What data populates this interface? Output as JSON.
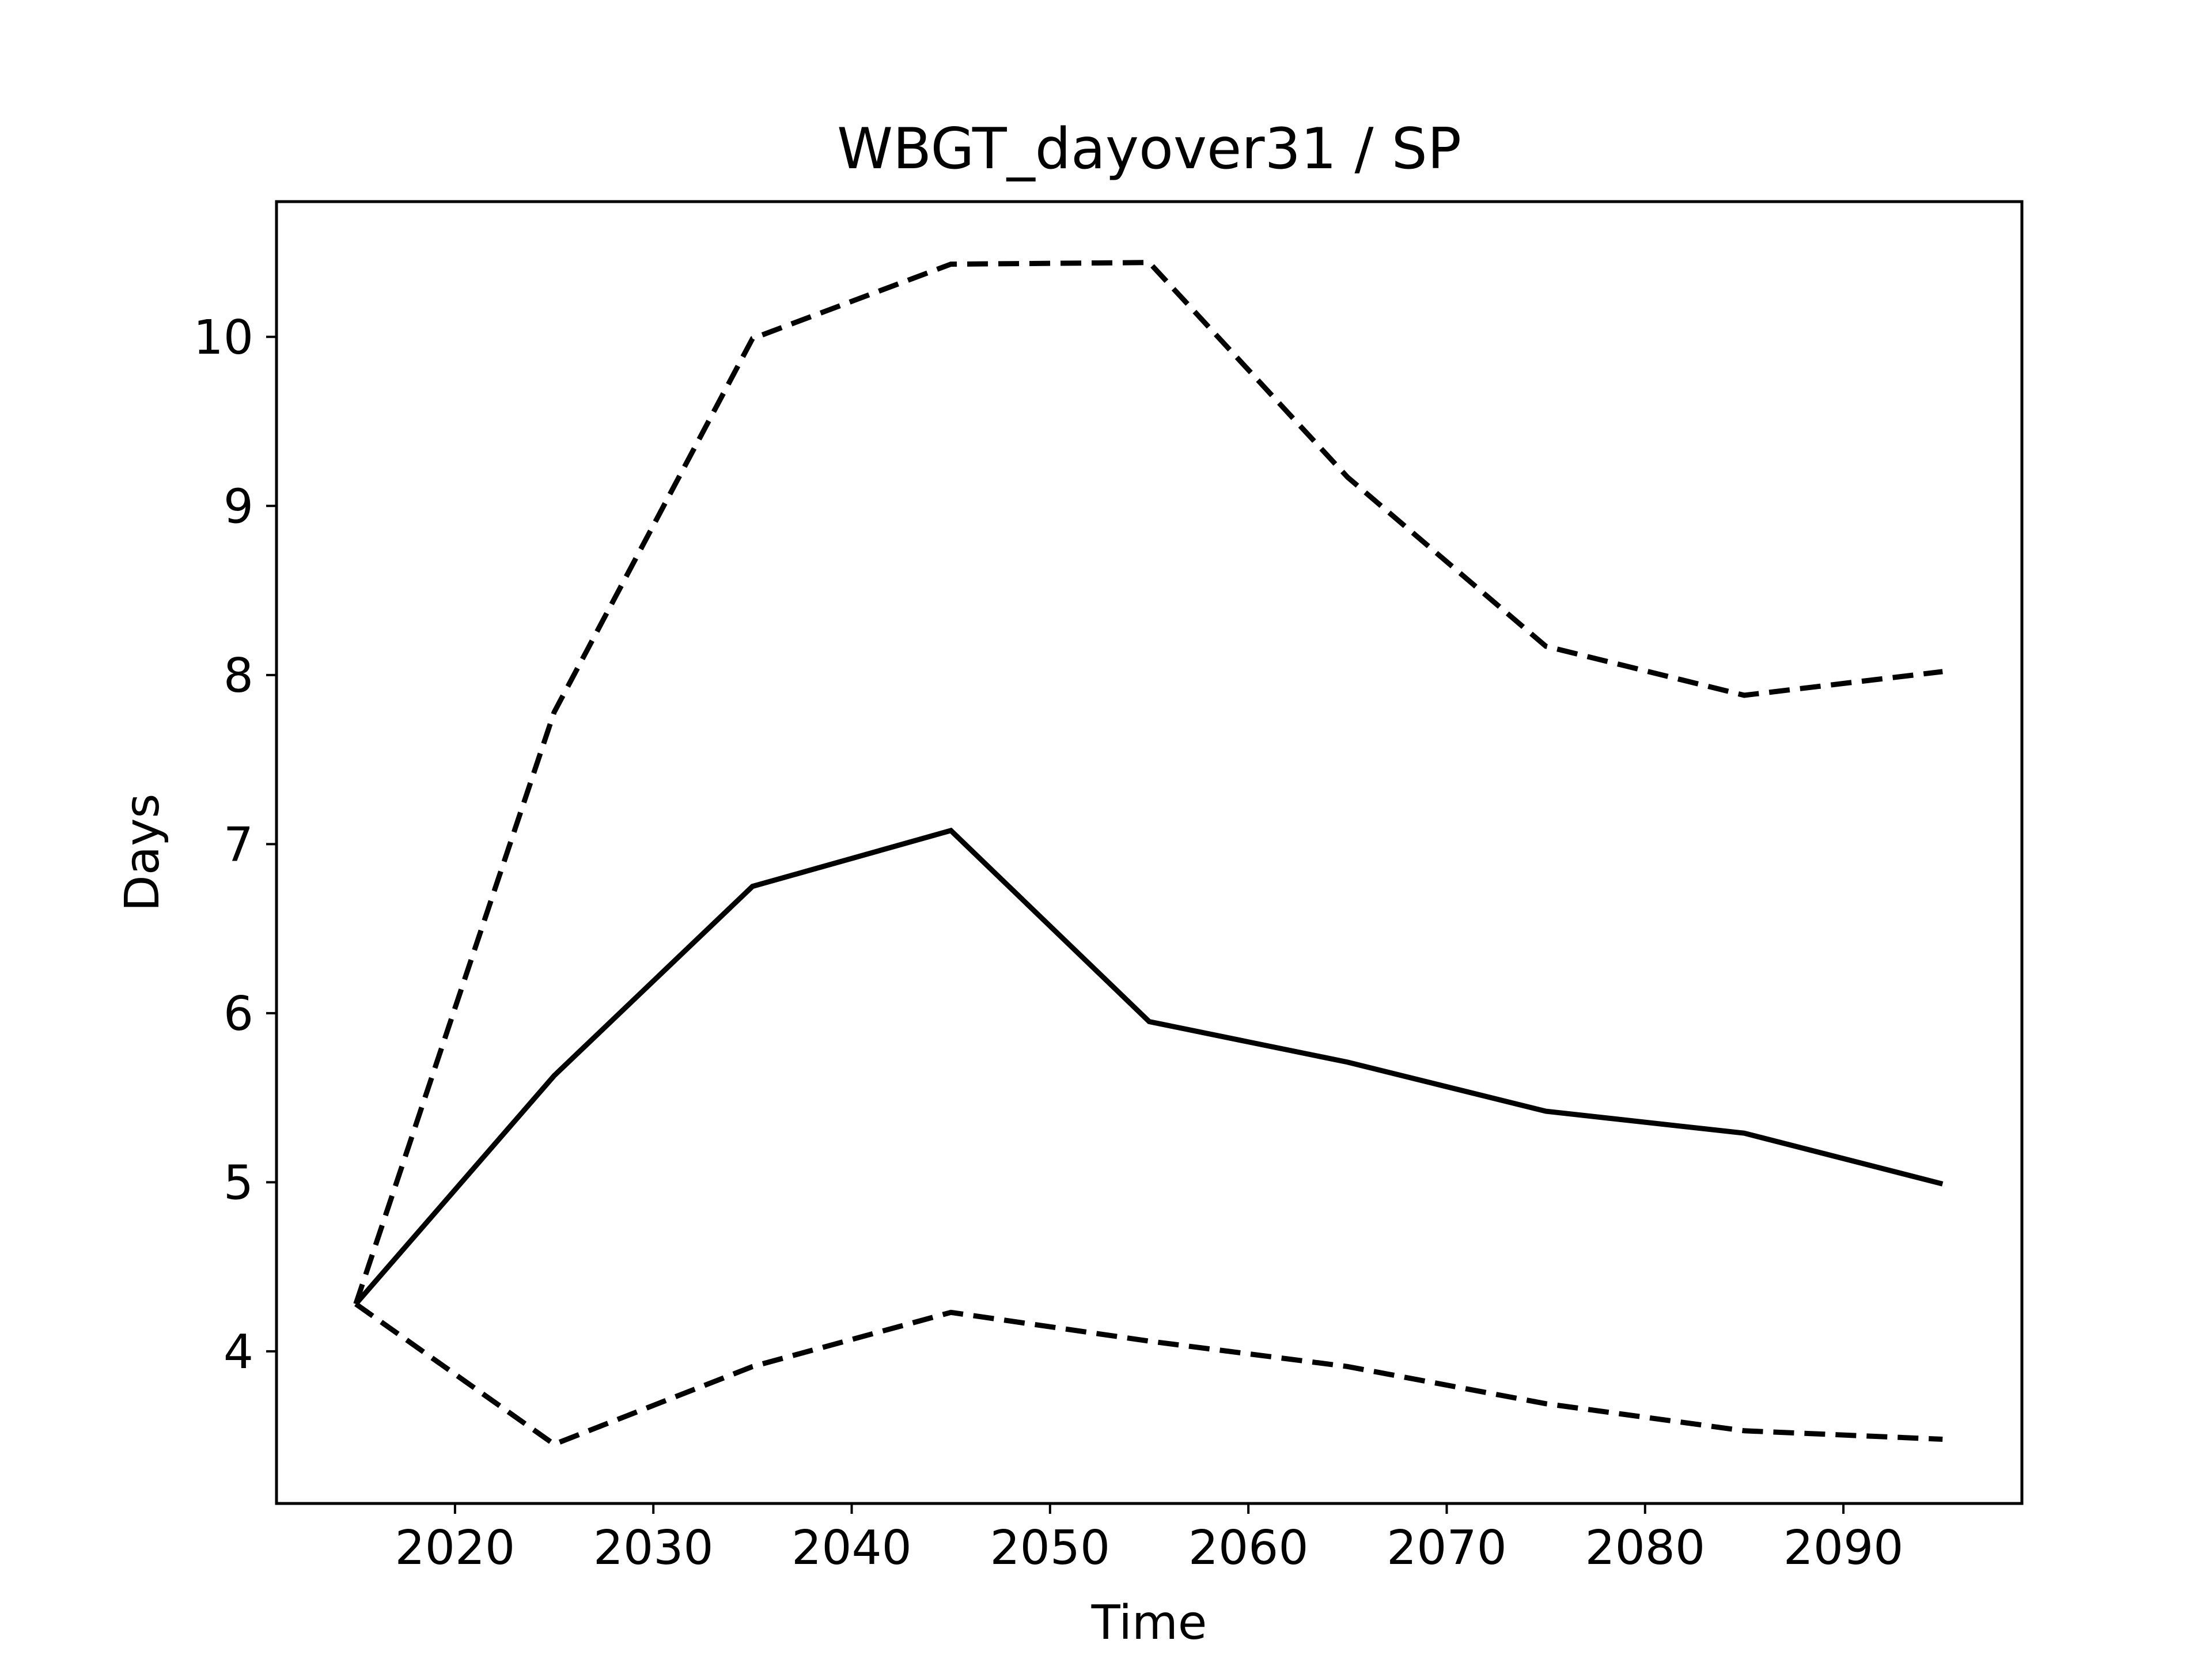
{
  "chart_data": {
    "type": "line",
    "title": "WBGT_dayover31 / SP",
    "xlabel": "Time",
    "ylabel": "Days",
    "x": [
      2015,
      2025,
      2035,
      2045,
      2055,
      2065,
      2075,
      2085,
      2095
    ],
    "xlim": [
      2011,
      2099
    ],
    "ylim": [
      3.1,
      10.8
    ],
    "xticks": [
      2020,
      2030,
      2040,
      2050,
      2060,
      2070,
      2080,
      2090
    ],
    "yticks": [
      4,
      5,
      6,
      7,
      8,
      9,
      10
    ],
    "grid": false,
    "legend": "none",
    "series": [
      {
        "style": "solid",
        "color": "#000000",
        "values": [
          4.28,
          5.63,
          6.75,
          7.08,
          5.95,
          5.71,
          5.42,
          5.29,
          4.99
        ]
      },
      {
        "style": "dashed",
        "color": "#000000",
        "values": [
          4.28,
          7.78,
          9.99,
          10.43,
          10.44,
          9.17,
          8.17,
          7.88,
          8.02
        ]
      },
      {
        "style": "dashed",
        "color": "#000000",
        "values": [
          4.28,
          3.45,
          3.91,
          4.23,
          4.06,
          3.91,
          3.69,
          3.53,
          3.48
        ]
      }
    ]
  }
}
